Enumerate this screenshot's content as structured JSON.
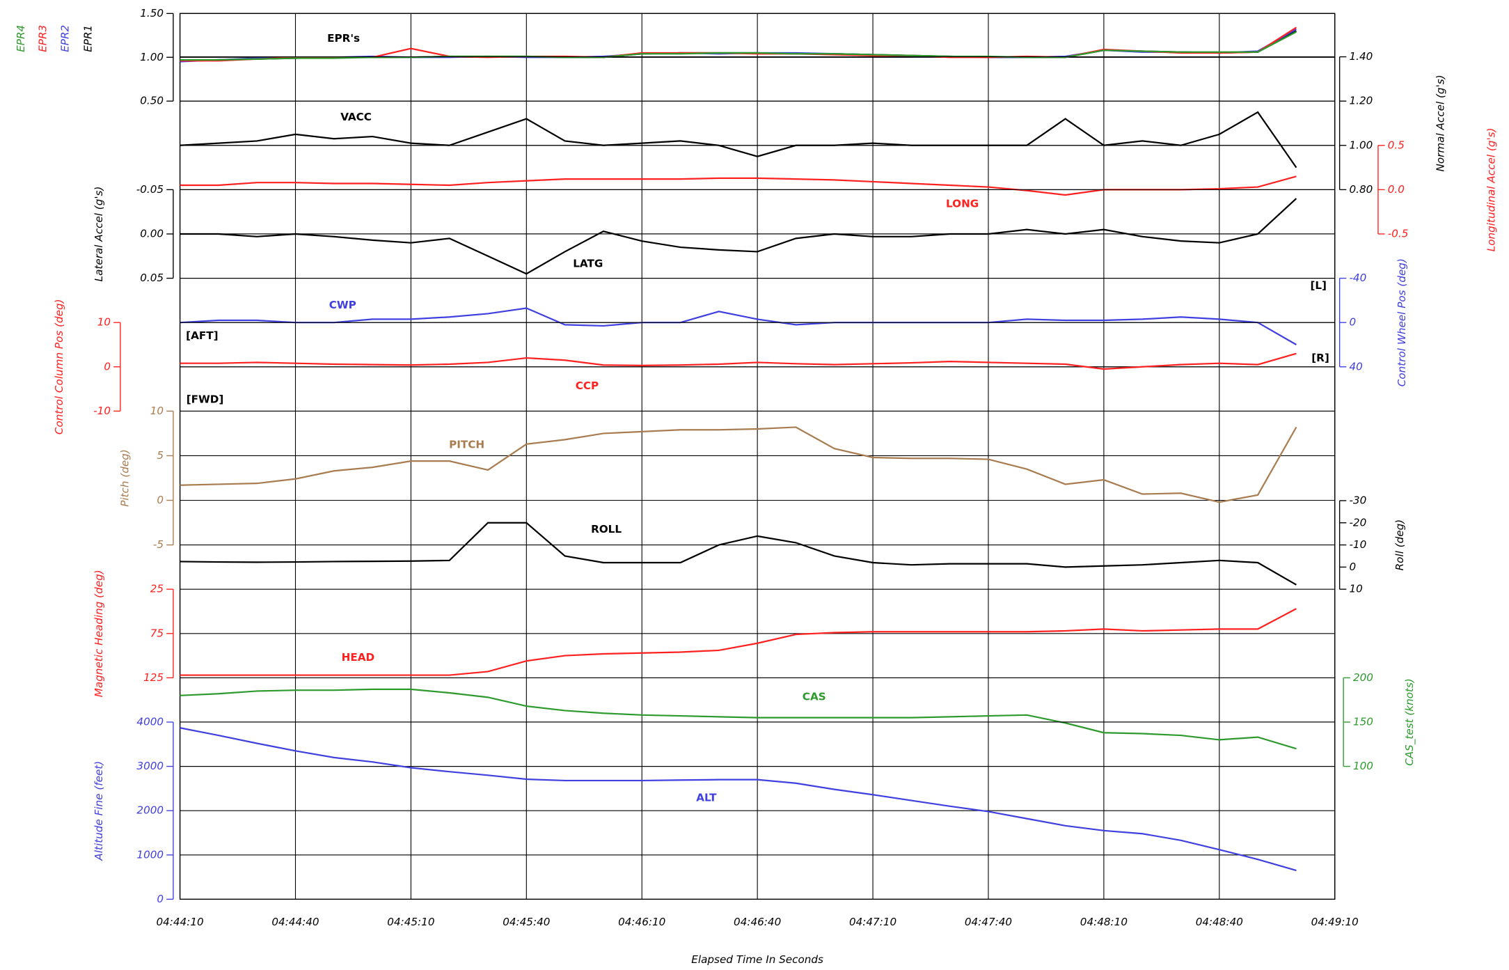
{
  "chart_data": {
    "type": "line",
    "xlabel": "Elapsed Time In Seconds",
    "x": [
      "04:44:10",
      "04:44:20",
      "04:44:30",
      "04:44:40",
      "04:44:50",
      "04:45:00",
      "04:45:10",
      "04:45:20",
      "04:45:30",
      "04:45:40",
      "04:45:50",
      "04:46:00",
      "04:46:10",
      "04:46:20",
      "04:46:30",
      "04:46:40",
      "04:46:50",
      "04:47:00",
      "04:47:10",
      "04:47:20",
      "04:47:30",
      "04:47:40",
      "04:47:50",
      "04:48:00",
      "04:48:10",
      "04:48:20",
      "04:48:30",
      "04:48:40",
      "04:48:50",
      "04:49:00"
    ],
    "xlim": [
      "04:44:10",
      "04:49:10"
    ],
    "xticks": [
      "04:44:10",
      "04:44:40",
      "04:45:10",
      "04:45:40",
      "04:46:10",
      "04:46:40",
      "04:47:10",
      "04:47:40",
      "04:48:10",
      "04:48:40",
      "04:49:10"
    ],
    "panels": [
      {
        "title": "EPR's",
        "side": "left",
        "color": "#000000",
        "grid": true,
        "ylim": [
          0.5,
          1.5
        ],
        "yticks": [
          {
            "value": 1.5,
            "label": "1.50"
          },
          {
            "value": 1.0,
            "label": "1.00"
          },
          {
            "value": 0.5,
            "label": "0.50"
          }
        ],
        "series": [
          {
            "name": "EPR1",
            "color": "#000000",
            "values": [
              0.96,
              0.97,
              0.98,
              0.99,
              1.0,
              1.0,
              1.0,
              1.01,
              1.01,
              1.01,
              1.0,
              1.0,
              1.04,
              1.05,
              1.05,
              1.05,
              1.04,
              1.04,
              1.03,
              1.02,
              1.01,
              1.0,
              1.0,
              1.0,
              1.08,
              1.07,
              1.06,
              1.05,
              1.06,
              1.3
            ]
          },
          {
            "name": "EPR2",
            "color": "#4040e0",
            "values": [
              0.95,
              0.97,
              0.99,
              0.99,
              1.0,
              1.01,
              1.0,
              1.0,
              1.01,
              1.0,
              1.0,
              1.01,
              1.04,
              1.05,
              1.04,
              1.05,
              1.05,
              1.04,
              1.03,
              1.01,
              1.01,
              1.0,
              1.0,
              1.01,
              1.08,
              1.06,
              1.06,
              1.05,
              1.07,
              1.32
            ]
          },
          {
            "name": "EPR3",
            "color": "#ff2020",
            "values": [
              0.96,
              0.96,
              0.98,
              1.0,
              1.0,
              1.0,
              1.1,
              1.01,
              1.0,
              1.01,
              1.01,
              1.0,
              1.05,
              1.05,
              1.05,
              1.04,
              1.04,
              1.03,
              1.02,
              1.02,
              1.0,
              1.0,
              1.01,
              1.0,
              1.09,
              1.07,
              1.05,
              1.05,
              1.06,
              1.34
            ]
          },
          {
            "name": "EPR4",
            "color": "#2e9a2e",
            "values": [
              0.97,
              0.97,
              0.98,
              0.99,
              0.99,
              1.0,
              1.0,
              1.01,
              1.01,
              1.01,
              1.0,
              1.0,
              1.04,
              1.04,
              1.05,
              1.05,
              1.04,
              1.04,
              1.03,
              1.02,
              1.01,
              1.01,
              1.0,
              1.0,
              1.08,
              1.07,
              1.06,
              1.06,
              1.06,
              1.29
            ]
          }
        ]
      },
      {
        "ylabel": "Normal Accel (g's)",
        "side": "right",
        "color": "#000000",
        "grid": true,
        "ylim": [
          0.8,
          1.4
        ],
        "yticks": [
          {
            "value": 1.4,
            "label": "1.40"
          },
          {
            "value": 1.2,
            "label": "1.20"
          },
          {
            "value": 1.0,
            "label": "1.00"
          },
          {
            "value": 0.8,
            "label": "0.80"
          }
        ],
        "series": [
          {
            "name": "VACC",
            "color": "#000000",
            "values": [
              1.0,
              1.01,
              1.02,
              1.05,
              1.03,
              1.04,
              1.01,
              1.0,
              1.06,
              1.12,
              1.02,
              1.0,
              1.01,
              1.02,
              1.0,
              0.95,
              1.0,
              1.0,
              1.01,
              1.0,
              1.0,
              1.0,
              1.0,
              1.12,
              1.0,
              1.02,
              1.0,
              1.05,
              1.15,
              0.9
            ]
          }
        ]
      },
      {
        "ylabel": "Longitudinal Accel (g's)",
        "side": "right",
        "color": "#ff2020",
        "grid": true,
        "ylim": [
          -0.5,
          0.5
        ],
        "yticks": [
          0.5,
          {
            "value": 0,
            "label": "0.0"
          },
          -0.5
        ],
        "series": [
          {
            "name": "LONG",
            "color": "#ff2020",
            "values": [
              0.05,
              0.05,
              0.08,
              0.08,
              0.07,
              0.07,
              0.06,
              0.05,
              0.08,
              0.1,
              0.12,
              0.12,
              0.12,
              0.12,
              0.13,
              0.13,
              0.12,
              0.11,
              0.09,
              0.07,
              0.05,
              0.03,
              -0.01,
              -0.06,
              0.0,
              0.0,
              0.0,
              0.01,
              0.03,
              0.15
            ]
          }
        ]
      },
      {
        "ylabel": "Lateral Accel (g's)",
        "side": "left",
        "color": "#000000",
        "grid": true,
        "ylim": [
          0.05,
          -0.05
        ],
        "yticks": [
          -0.05,
          {
            "value": 0,
            "label": "0.00"
          },
          0.05
        ],
        "series": [
          {
            "name": "LATG",
            "color": "#000000",
            "values": [
              0.0,
              0.0,
              0.003,
              0.0,
              0.003,
              0.007,
              0.01,
              0.005,
              0.025,
              0.045,
              0.02,
              -0.003,
              0.008,
              0.015,
              0.018,
              0.02,
              0.005,
              0.0,
              0.003,
              0.003,
              0.0,
              0.0,
              -0.005,
              0.0,
              -0.005,
              0.003,
              0.008,
              0.01,
              0.0,
              -0.04
            ]
          }
        ]
      },
      {
        "ylabel": "Control Wheel Pos (deg)",
        "side": "right",
        "color": "#4040e0",
        "grid": true,
        "ylim": [
          40,
          -40
        ],
        "yticks": [
          -40,
          0,
          40
        ],
        "annotations": [
          "[L]",
          "[R]"
        ],
        "series": [
          {
            "name": "CWP",
            "color": "#4040e0",
            "values": [
              0,
              -2,
              -2,
              0,
              0,
              -3,
              -3,
              -5,
              -8,
              -13,
              2,
              3,
              0,
              0,
              -10,
              -3,
              2,
              0,
              0,
              0,
              0,
              0,
              -3,
              -2,
              -2,
              -3,
              -5,
              -3,
              0,
              20
            ]
          }
        ]
      },
      {
        "ylabel": "Control Column Pos (deg)",
        "side": "left",
        "color": "#ff2020",
        "grid": true,
        "ylim": [
          -10,
          10
        ],
        "yticks": [
          10,
          0,
          -10
        ],
        "annotations": [
          "[AFT]",
          "[FWD]"
        ],
        "series": [
          {
            "name": "CCP",
            "color": "#ff2020",
            "values": [
              0.8,
              0.8,
              1,
              0.8,
              0.6,
              0.5,
              0.4,
              0.6,
              1,
              2,
              1.5,
              0.4,
              0.3,
              0.4,
              0.6,
              1,
              0.7,
              0.5,
              0.7,
              0.9,
              1.2,
              1,
              0.8,
              0.6,
              -0.5,
              0,
              0.5,
              0.8,
              0.5,
              3
            ]
          }
        ]
      },
      {
        "ylabel": "Pitch (deg)",
        "side": "left",
        "color": "#a97c50",
        "grid": true,
        "ylim": [
          -5,
          10
        ],
        "yticks": [
          10,
          5,
          0,
          -5
        ],
        "series": [
          {
            "name": "PITCH",
            "color": "#a97c50",
            "values": [
              1.7,
              1.8,
              1.9,
              2.4,
              3.3,
              3.7,
              4.4,
              4.4,
              3.4,
              6.3,
              6.8,
              7.5,
              7.7,
              7.9,
              7.9,
              8.0,
              8.2,
              5.8,
              4.8,
              4.7,
              4.7,
              4.6,
              3.5,
              1.8,
              2.3,
              0.7,
              0.8,
              -0.2,
              0.6,
              8.2
            ]
          }
        ]
      },
      {
        "ylabel": "Roll (deg)",
        "side": "right",
        "color": "#000000",
        "grid": false,
        "ylim": [
          10,
          -30
        ],
        "yticks": [
          -30,
          -20,
          -10,
          0,
          10
        ],
        "series": [
          {
            "name": "ROLL",
            "color": "#000000",
            "values": [
              -2.5,
              -2.3,
              -2.2,
              -2.3,
              -2.5,
              -2.6,
              -2.7,
              -3,
              -20,
              -20,
              -5,
              -2,
              -2,
              -2,
              -10,
              -14,
              -11,
              -5,
              -2,
              -1,
              -1.5,
              -1.5,
              -1.5,
              0,
              -0.5,
              -1,
              -2,
              -3,
              -2,
              8
            ]
          }
        ]
      },
      {
        "ylabel": "Magnetic Heading (deg)",
        "side": "left",
        "color": "#ff2020",
        "grid": true,
        "ylim": [
          125,
          25
        ],
        "yticks": [
          25,
          75,
          125
        ],
        "series": [
          {
            "name": "HEAD",
            "color": "#ff2020",
            "values": [
              122,
              122,
              122,
              122,
              122,
              122,
              122,
              122,
              118,
              106,
              100,
              98,
              97,
              96,
              94,
              86,
              76,
              74,
              73,
              73,
              73,
              73,
              73,
              72,
              70,
              72,
              71,
              70,
              70,
              47
            ]
          }
        ]
      },
      {
        "ylabel": "CAS_test (knots)",
        "side": "right",
        "color": "#2e9a2e",
        "grid": true,
        "ylim": [
          100,
          200
        ],
        "yticks": [
          200,
          150,
          100
        ],
        "series": [
          {
            "name": "CAS",
            "color": "#2e9a2e",
            "values": [
              180,
              182,
              185,
              186,
              186,
              187,
              187,
              183,
              178,
              168,
              163,
              160,
              158,
              157,
              156,
              155,
              155,
              155,
              155,
              155,
              156,
              157,
              158,
              149,
              138,
              137,
              135,
              130,
              133,
              120
            ]
          }
        ]
      },
      {
        "ylabel": "Altitude Fine (feet)",
        "side": "left",
        "color": "#4040e0",
        "grid": true,
        "ylim": [
          0,
          4000
        ],
        "yticks": [
          4000,
          3000,
          2000,
          1000,
          0
        ],
        "series": [
          {
            "name": "ALT",
            "color": "#4040e0",
            "values": [
              3870,
              3700,
              3520,
              3350,
              3200,
              3100,
              2970,
              2880,
              2800,
              2710,
              2680,
              2680,
              2680,
              2690,
              2700,
              2700,
              2620,
              2480,
              2360,
              2230,
              2100,
              1980,
              1820,
              1660,
              1550,
              1480,
              1330,
              1120,
              900,
              650
            ]
          }
        ]
      }
    ]
  }
}
